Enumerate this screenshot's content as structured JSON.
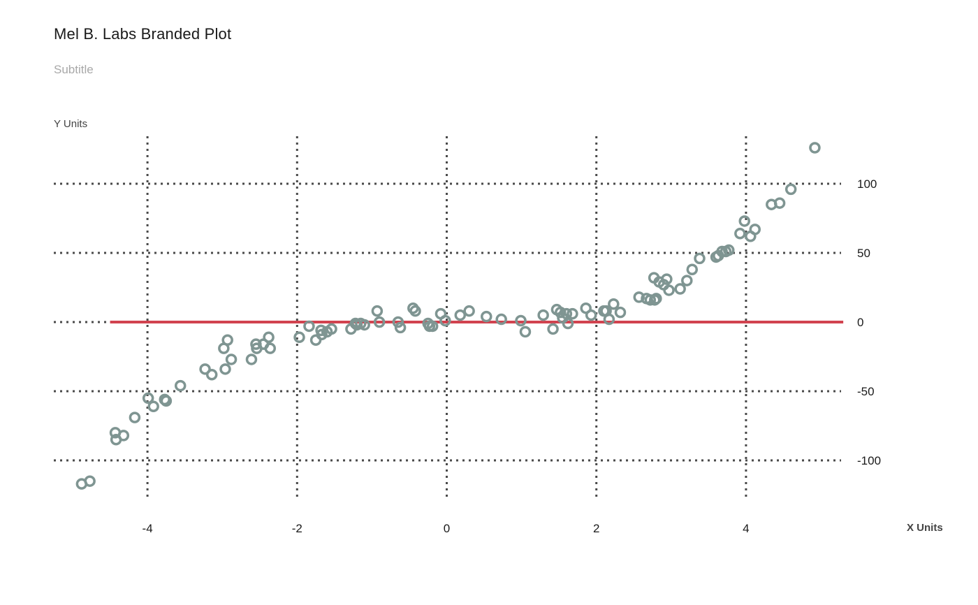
{
  "chart_data": {
    "type": "scatter",
    "title": "Mel B. Labs Branded Plot",
    "subtitle": "Subtitle",
    "xlabel": "X Units",
    "ylabel": "Y Units",
    "xlim": [
      -5.25,
      5.3
    ],
    "ylim": [
      -128,
      130
    ],
    "xticks": [
      -4,
      -2,
      0,
      2,
      4
    ],
    "yticks": [
      -100,
      -50,
      0,
      50,
      100
    ],
    "xtick_labels": [
      "-4",
      "-2",
      "0",
      "2",
      "4"
    ],
    "ytick_labels": [
      "-100",
      "-50",
      "0",
      "50",
      "100"
    ],
    "grid": true,
    "grid_style": "dotted",
    "reference_line": {
      "y": 0,
      "x_from": -4.5,
      "x_to": 5.3,
      "color": "#d1434f"
    },
    "marker_color": "#7f9592",
    "grid_color": "#4a4a4a",
    "series": [
      {
        "points": [
          [
            -4.88,
            -117
          ],
          [
            -4.77,
            -115
          ],
          [
            -4.43,
            -80
          ],
          [
            -4.42,
            -85
          ],
          [
            -4.32,
            -82
          ],
          [
            -4.17,
            -69
          ],
          [
            -3.99,
            -55
          ],
          [
            -3.92,
            -61
          ],
          [
            -3.77,
            -56
          ],
          [
            -3.75,
            -57
          ],
          [
            -3.56,
            -46
          ],
          [
            -3.23,
            -34
          ],
          [
            -3.14,
            -38
          ],
          [
            -2.98,
            -19
          ],
          [
            -2.96,
            -34
          ],
          [
            -2.93,
            -13
          ],
          [
            -2.88,
            -27
          ],
          [
            -2.61,
            -27
          ],
          [
            -2.55,
            -16
          ],
          [
            -2.54,
            -19
          ],
          [
            -2.45,
            -16
          ],
          [
            -2.38,
            -11
          ],
          [
            -2.36,
            -19
          ],
          [
            -1.97,
            -11
          ],
          [
            -1.84,
            -3
          ],
          [
            -1.75,
            -13
          ],
          [
            -1.68,
            -6
          ],
          [
            -1.67,
            -9
          ],
          [
            -1.6,
            -7
          ],
          [
            -1.54,
            -5
          ],
          [
            -1.28,
            -5
          ],
          [
            -1.22,
            -1
          ],
          [
            -1.2,
            -2
          ],
          [
            -1.15,
            -1
          ],
          [
            -1.1,
            -2
          ],
          [
            -0.93,
            8
          ],
          [
            -0.9,
            0
          ],
          [
            -0.65,
            0
          ],
          [
            -0.62,
            -4
          ],
          [
            -0.45,
            10
          ],
          [
            -0.42,
            8
          ],
          [
            -0.25,
            -1
          ],
          [
            -0.23,
            -3
          ],
          [
            -0.19,
            -3
          ],
          [
            -0.08,
            6
          ],
          [
            -0.02,
            1
          ],
          [
            0.18,
            5
          ],
          [
            0.3,
            8
          ],
          [
            0.53,
            4
          ],
          [
            0.73,
            2
          ],
          [
            0.99,
            1
          ],
          [
            1.05,
            -7
          ],
          [
            1.29,
            5
          ],
          [
            1.42,
            -5
          ],
          [
            1.47,
            9
          ],
          [
            1.52,
            7
          ],
          [
            1.55,
            3
          ],
          [
            1.6,
            6
          ],
          [
            1.62,
            -1
          ],
          [
            1.68,
            6
          ],
          [
            1.86,
            10
          ],
          [
            1.93,
            5
          ],
          [
            2.1,
            8
          ],
          [
            2.13,
            8
          ],
          [
            2.17,
            2
          ],
          [
            2.23,
            13
          ],
          [
            2.32,
            7
          ],
          [
            2.57,
            18
          ],
          [
            2.67,
            17
          ],
          [
            2.72,
            16
          ],
          [
            2.77,
            32
          ],
          [
            2.78,
            16
          ],
          [
            2.8,
            17
          ],
          [
            2.84,
            29
          ],
          [
            2.9,
            27
          ],
          [
            2.94,
            31
          ],
          [
            2.97,
            23
          ],
          [
            3.12,
            24
          ],
          [
            3.21,
            30
          ],
          [
            3.28,
            38
          ],
          [
            3.38,
            46
          ],
          [
            3.6,
            47
          ],
          [
            3.63,
            48
          ],
          [
            3.68,
            51
          ],
          [
            3.73,
            51
          ],
          [
            3.77,
            52
          ],
          [
            3.92,
            64
          ],
          [
            3.98,
            73
          ],
          [
            4.06,
            62
          ],
          [
            4.12,
            67
          ],
          [
            4.34,
            85
          ],
          [
            4.45,
            86
          ],
          [
            4.6,
            96
          ],
          [
            4.92,
            126
          ]
        ]
      }
    ]
  }
}
